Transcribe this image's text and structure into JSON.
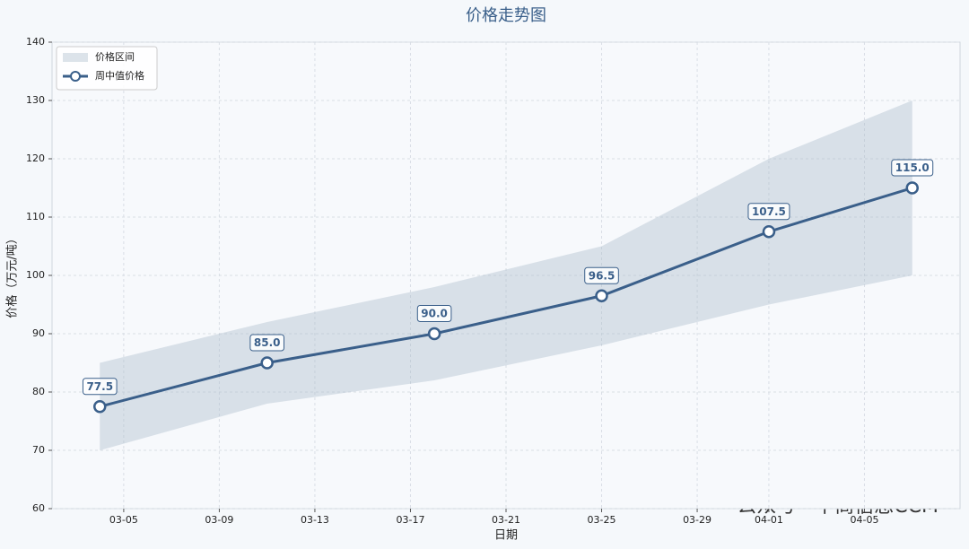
{
  "chart_data": {
    "type": "line",
    "title": "价格走势图",
    "xlabel": "日期",
    "ylabel": "价格（万元/吨）",
    "x": [
      "03-04",
      "03-11",
      "03-18",
      "03-25",
      "04-01",
      "04-07"
    ],
    "xlim": [
      "03-02",
      "04-09"
    ],
    "xticks": [
      "03-05",
      "03-09",
      "03-13",
      "03-17",
      "03-21",
      "03-25",
      "03-29",
      "04-01",
      "04-05"
    ],
    "ylim": [
      60,
      140
    ],
    "yticks": [
      60,
      70,
      80,
      90,
      100,
      110,
      120,
      130,
      140
    ],
    "grid": true,
    "legend": "upper left",
    "band": {
      "name": "价格区间",
      "color": "#a9bccb",
      "low": [
        70,
        78,
        82,
        88,
        95,
        100
      ],
      "high": [
        85,
        92,
        98,
        105,
        120,
        130
      ]
    },
    "series": [
      {
        "name": "周中值价格",
        "color": "#3a5f8a",
        "values": [
          77.5,
          85,
          90,
          96.5,
          107.5,
          115
        ],
        "value_labels": [
          "77.5",
          "85.0",
          "90.0",
          "96.5",
          "107.5",
          "115.0"
        ]
      }
    ]
  },
  "watermark": "公众号 · 中商信息CCM"
}
